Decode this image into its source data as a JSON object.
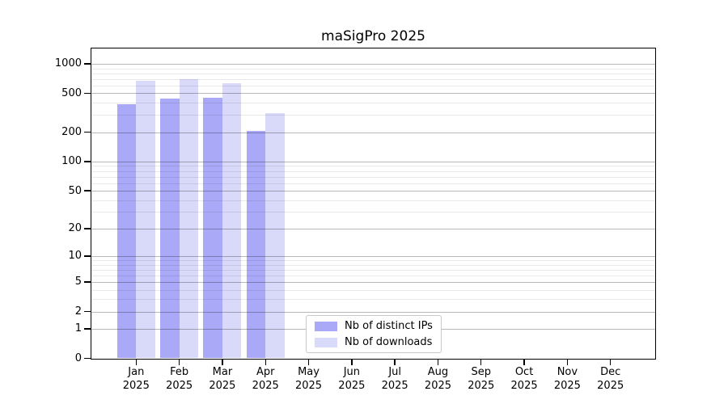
{
  "figure": {
    "background": "#ffffff"
  },
  "chart_data": {
    "type": "bar",
    "title": "maSigPro 2025",
    "x_categories": [
      "Jan",
      "Feb",
      "Mar",
      "Apr",
      "May",
      "Jun",
      "Jul",
      "Aug",
      "Sep",
      "Oct",
      "Nov",
      "Dec"
    ],
    "x_year_label": "2025",
    "series": [
      {
        "name": "Nb of distinct IPs",
        "color": "#a9a9f7",
        "values": [
          385,
          445,
          450,
          205,
          null,
          null,
          null,
          null,
          null,
          null,
          null,
          null
        ]
      },
      {
        "name": "Nb of downloads",
        "color": "#d9d9f9",
        "values": [
          670,
          693,
          638,
          313,
          null,
          null,
          null,
          null,
          null,
          null,
          null,
          null
        ]
      }
    ],
    "y_scale": "log1p",
    "y_ticks": [
      0,
      1,
      2,
      5,
      10,
      20,
      50,
      100,
      200,
      500,
      1000
    ],
    "y_minor_gridlines": [
      3,
      4,
      6,
      7,
      8,
      9,
      30,
      40,
      60,
      70,
      80,
      90,
      300,
      400,
      600,
      700,
      800,
      900
    ],
    "ylim": [
      0,
      1430
    ],
    "grid": true,
    "legend_position": "bottom-center",
    "colors": {
      "axis": "#000000",
      "major_grid": "#b8b8b8",
      "minor_grid": "#eaeaea",
      "background": "#ffffff"
    }
  }
}
